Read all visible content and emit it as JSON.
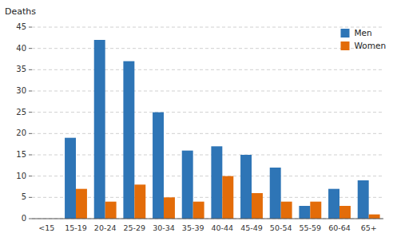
{
  "chart_data": {
    "type": "bar",
    "ylabel": "Deaths",
    "categories": [
      "<15",
      "15-19",
      "20-24",
      "25-29",
      "30-34",
      "35-39",
      "40-44",
      "45-49",
      "50-54",
      "55-59",
      "60-64",
      "65+"
    ],
    "series": [
      {
        "name": "Men",
        "color": "#2E75B6",
        "values": [
          0,
          19,
          42,
          37,
          25,
          16,
          17,
          15,
          12,
          3,
          7,
          9
        ]
      },
      {
        "name": "Women",
        "color": "#E36C09",
        "values": [
          0,
          7,
          4,
          8,
          5,
          4,
          10,
          6,
          4,
          4,
          3,
          1
        ]
      }
    ],
    "ylim": [
      0,
      45
    ],
    "yticks": [
      0,
      5,
      10,
      15,
      20,
      25,
      30,
      35,
      40,
      45
    ],
    "grid": true,
    "legend": "upper right"
  }
}
